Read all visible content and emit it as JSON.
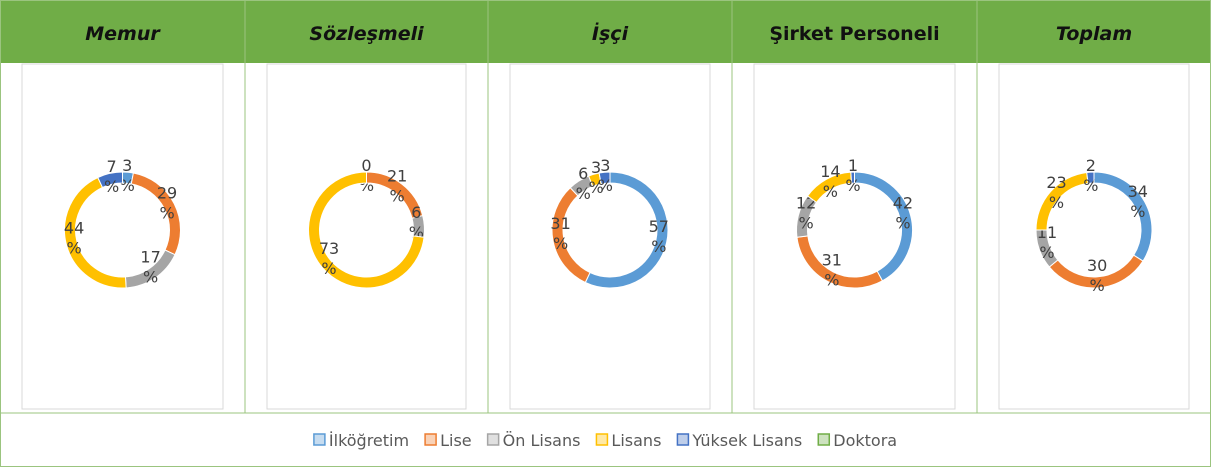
{
  "chart_data": [
    {
      "type": "donut",
      "title": "Memur",
      "values": [
        3,
        29,
        17,
        44,
        7,
        0
      ],
      "value_labels": [
        "3 %",
        "29 %",
        "17 %",
        "44 %",
        "7 %",
        null
      ]
    },
    {
      "type": "donut",
      "title": "Sözleşmeli",
      "values": [
        0,
        21,
        6,
        73,
        0,
        0
      ],
      "value_labels": [
        "0 %",
        "21 %",
        "6 %",
        "73 %",
        null,
        null
      ]
    },
    {
      "type": "donut",
      "title": "İşçi",
      "values": [
        57,
        31,
        6,
        3,
        3,
        0
      ],
      "value_labels": [
        "57 %",
        "31 %",
        "6 %",
        "3 %",
        "3 %",
        null
      ]
    },
    {
      "type": "donut",
      "title": "Şirket Personeli",
      "values": [
        42,
        31,
        12,
        14,
        1,
        0
      ],
      "value_labels": [
        "42 %",
        "31 %",
        "12 %",
        "14 %",
        "1 %",
        null
      ]
    },
    {
      "type": "donut",
      "title": "Toplam",
      "values": [
        34,
        30,
        11,
        23,
        2,
        0
      ],
      "value_labels": [
        "34 %",
        "30 %",
        "11 %",
        "23 %",
        "2 %",
        null
      ]
    }
  ],
  "legend": {
    "categories": [
      "İlköğretim",
      "Lise",
      "Ön Lisans",
      "Lisans",
      "Yüksek Lisans",
      "Doktora"
    ],
    "colors": [
      "#5b9bd5",
      "#ed7d31",
      "#a5a5a5",
      "#ffc000",
      "#4472c4",
      "#70ad47"
    ]
  }
}
